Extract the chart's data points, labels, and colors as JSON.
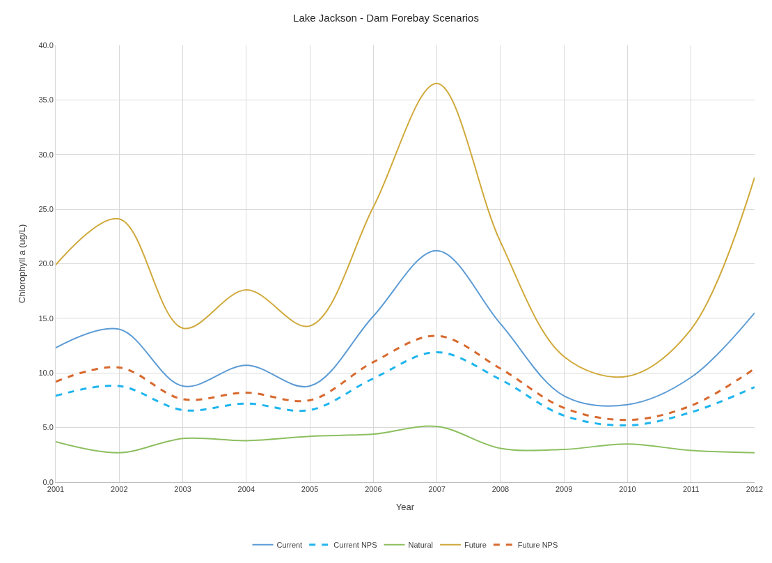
{
  "chart_data": {
    "type": "line",
    "title": "Lake Jackson - Dam Forebay Scenarios",
    "xlabel": "Year",
    "ylabel": "Chlorophyll a (ug/L)",
    "x": [
      2001,
      2002,
      2003,
      2004,
      2005,
      2006,
      2007,
      2008,
      2009,
      2010,
      2011,
      2012
    ],
    "xlim": [
      2001,
      2012
    ],
    "xticks": [
      2001,
      2002,
      2003,
      2004,
      2005,
      2006,
      2007,
      2008,
      2009,
      2010,
      2011,
      2012
    ],
    "ylim": [
      0,
      40
    ],
    "yticks": [
      {
        "value": 0,
        "label": "0.0"
      },
      {
        "value": 5,
        "label": "5.0"
      },
      {
        "value": 10,
        "label": "10.0"
      },
      {
        "value": 15,
        "label": "15.0"
      },
      {
        "value": 20,
        "label": "20.0"
      },
      {
        "value": 25,
        "label": "25.0"
      },
      {
        "value": 30,
        "label": "30.0"
      },
      {
        "value": 35,
        "label": "35.0"
      },
      {
        "value": 40,
        "label": "40.0"
      }
    ],
    "grid": true,
    "legend": "bottom",
    "marker": "none",
    "series": [
      {
        "name": "Current",
        "color": "#5b9bd5",
        "line_style": "solid",
        "values": [
          12.3,
          14.0,
          8.8,
          10.7,
          8.8,
          15.2,
          21.2,
          14.5,
          7.9,
          7.1,
          9.6,
          15.5
        ]
      },
      {
        "name": "Current NPS",
        "color": "#1fb5ee",
        "line_style": "dashed",
        "values": [
          7.9,
          8.8,
          6.6,
          7.2,
          6.6,
          9.5,
          11.9,
          9.4,
          6.1,
          5.2,
          6.4,
          8.7
        ]
      },
      {
        "name": "Natural",
        "color": "#8cbf5f",
        "line_style": "solid",
        "values": [
          3.7,
          2.7,
          4.0,
          3.8,
          4.2,
          4.4,
          5.1,
          3.1,
          3.0,
          3.5,
          2.9,
          2.7
        ]
      },
      {
        "name": "Future",
        "color": "#d0a93a",
        "line_style": "solid",
        "values": [
          19.9,
          24.1,
          14.1,
          17.6,
          14.3,
          25.2,
          36.5,
          22.0,
          11.5,
          9.7,
          14.0,
          27.9
        ]
      },
      {
        "name": "Future NPS",
        "color": "#d8692e",
        "line_style": "dashed",
        "values": [
          9.2,
          10.5,
          7.6,
          8.2,
          7.5,
          11.0,
          13.4,
          10.4,
          6.8,
          5.7,
          7.0,
          10.4
        ]
      }
    ]
  }
}
